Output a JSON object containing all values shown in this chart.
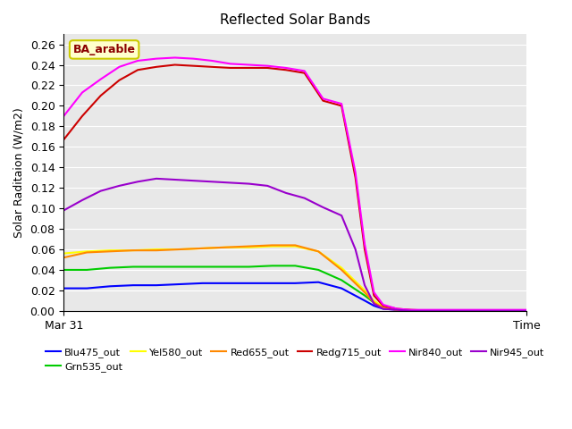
{
  "title": "Reflected Solar Bands",
  "ylabel": "Solar Raditaion (W/m2)",
  "annotation": "BA_arable",
  "xlim": [
    0,
    100
  ],
  "ylim": [
    0.0,
    0.27
  ],
  "yticks": [
    0.0,
    0.02,
    0.04,
    0.06,
    0.08,
    0.1,
    0.12,
    0.14,
    0.16,
    0.18,
    0.2,
    0.22,
    0.24,
    0.26
  ],
  "background_color": "#e8e8e8",
  "series": {
    "Blu475_out": {
      "color": "#0000ff",
      "x": [
        0,
        5,
        10,
        15,
        20,
        25,
        30,
        35,
        40,
        45,
        50,
        55,
        60,
        65,
        67,
        69,
        72,
        75,
        80,
        100
      ],
      "y": [
        0.022,
        0.022,
        0.024,
        0.025,
        0.025,
        0.026,
        0.027,
        0.027,
        0.027,
        0.027,
        0.027,
        0.028,
        0.022,
        0.01,
        0.005,
        0.002,
        0.001,
        0.0,
        0.0,
        0.0
      ]
    },
    "Grn535_out": {
      "color": "#00cc00",
      "x": [
        0,
        5,
        10,
        15,
        20,
        25,
        30,
        35,
        40,
        45,
        50,
        55,
        60,
        65,
        67,
        69,
        72,
        75,
        80,
        100
      ],
      "y": [
        0.04,
        0.04,
        0.042,
        0.043,
        0.043,
        0.043,
        0.043,
        0.043,
        0.043,
        0.044,
        0.044,
        0.04,
        0.03,
        0.015,
        0.008,
        0.003,
        0.001,
        0.0,
        0.0,
        0.0
      ]
    },
    "Yel580_out": {
      "color": "#ffff00",
      "x": [
        0,
        5,
        10,
        15,
        20,
        25,
        30,
        35,
        40,
        45,
        50,
        55,
        60,
        65,
        67,
        69,
        72,
        75,
        80,
        100
      ],
      "y": [
        0.056,
        0.058,
        0.059,
        0.059,
        0.06,
        0.06,
        0.061,
        0.062,
        0.062,
        0.063,
        0.063,
        0.058,
        0.042,
        0.02,
        0.01,
        0.004,
        0.001,
        0.0,
        0.0,
        0.0
      ]
    },
    "Red655_out": {
      "color": "#ff8800",
      "x": [
        0,
        5,
        10,
        15,
        20,
        25,
        30,
        35,
        40,
        45,
        50,
        55,
        60,
        65,
        67,
        69,
        72,
        75,
        80,
        100
      ],
      "y": [
        0.052,
        0.057,
        0.058,
        0.059,
        0.059,
        0.06,
        0.061,
        0.062,
        0.063,
        0.064,
        0.064,
        0.058,
        0.04,
        0.018,
        0.008,
        0.003,
        0.001,
        0.0,
        0.0,
        0.0
      ]
    },
    "Redg715_out": {
      "color": "#cc0000",
      "x": [
        0,
        4,
        8,
        12,
        16,
        20,
        24,
        28,
        32,
        36,
        40,
        44,
        48,
        52,
        56,
        60,
        63,
        65,
        67,
        69,
        72,
        75,
        80,
        100
      ],
      "y": [
        0.167,
        0.19,
        0.21,
        0.225,
        0.235,
        0.238,
        0.24,
        0.239,
        0.238,
        0.237,
        0.237,
        0.237,
        0.235,
        0.232,
        0.205,
        0.2,
        0.13,
        0.06,
        0.015,
        0.005,
        0.002,
        0.001,
        0.0,
        0.0
      ]
    },
    "Nir840_out": {
      "color": "#ff00ff",
      "x": [
        0,
        4,
        8,
        12,
        16,
        20,
        24,
        28,
        32,
        36,
        40,
        44,
        48,
        52,
        56,
        60,
        63,
        65,
        67,
        69,
        72,
        75,
        80,
        100
      ],
      "y": [
        0.19,
        0.213,
        0.226,
        0.238,
        0.244,
        0.246,
        0.247,
        0.246,
        0.244,
        0.241,
        0.24,
        0.239,
        0.237,
        0.234,
        0.207,
        0.202,
        0.135,
        0.065,
        0.018,
        0.006,
        0.002,
        0.001,
        0.001,
        0.001
      ]
    },
    "Nir945_out": {
      "color": "#9900cc",
      "x": [
        0,
        4,
        8,
        12,
        16,
        20,
        24,
        28,
        32,
        36,
        40,
        44,
        48,
        52,
        56,
        60,
        63,
        65,
        67,
        69,
        72,
        75,
        80,
        100
      ],
      "y": [
        0.098,
        0.108,
        0.117,
        0.122,
        0.126,
        0.129,
        0.128,
        0.127,
        0.126,
        0.125,
        0.124,
        0.122,
        0.115,
        0.11,
        0.101,
        0.093,
        0.06,
        0.025,
        0.007,
        0.002,
        0.001,
        0.0,
        0.0,
        0.0
      ]
    }
  },
  "xtick_pos_mar31": 0,
  "xtick_pos_time": 100
}
